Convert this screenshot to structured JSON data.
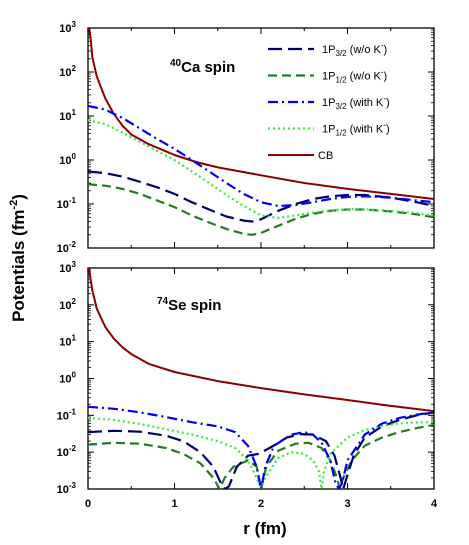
{
  "chart_data": {
    "type": "line",
    "ylabel": "Potentials (fm",
    "ylabel_sup": "-2",
    "ylabel_close": ")",
    "xlabel": "r (fm)",
    "x_range": [
      0,
      4
    ],
    "x_ticks": [
      "0",
      "1",
      "2",
      "3",
      "4"
    ],
    "y_scale": "log",
    "colors": {
      "p32_wo": "#00006e",
      "p12_wo": "#237a23",
      "p32_with": "#0000ee",
      "p12_with": "#33ee33",
      "cb": "#8b0000"
    },
    "legend": {
      "placement": "top-right",
      "entries": [
        {
          "key": "p32_wo",
          "pre": "1P",
          "sub": "3/2",
          "post": " (w/o K",
          "sup": "-",
          "end": ")",
          "style": "long-dash"
        },
        {
          "key": "p12_wo",
          "pre": "1P",
          "sub": "1/2",
          "post": " (w/o K",
          "sup": "-",
          "end": ")",
          "style": "dash"
        },
        {
          "key": "p32_with",
          "pre": "1P",
          "sub": "3/2",
          "post": " (with K",
          "sup": "-",
          "end": ")",
          "style": "dash-dot"
        },
        {
          "key": "p12_with",
          "pre": "1P",
          "sub": "1/2",
          "post": " (with K",
          "sup": "-",
          "end": ")",
          "style": "dotted"
        },
        {
          "key": "cb",
          "pre": "CB",
          "sub": "",
          "post": "",
          "sup": "",
          "end": "",
          "style": "solid"
        }
      ]
    },
    "panels": [
      {
        "label_sup": "40",
        "label": "Ca spin",
        "y_range_exp": [
          -2,
          3
        ],
        "y_ticks": [
          {
            "base": "10",
            "exp": "3"
          },
          {
            "base": "10",
            "exp": "2"
          },
          {
            "base": "10",
            "exp": "1"
          },
          {
            "base": "10",
            "exp": "0"
          },
          {
            "base": "10",
            "exp": "-1"
          },
          {
            "base": "10",
            "exp": "-2"
          }
        ],
        "series": {
          "cb": [
            [
              0.01,
              1000
            ],
            [
              0.03,
              600
            ],
            [
              0.05,
              220
            ],
            [
              0.1,
              80
            ],
            [
              0.2,
              25
            ],
            [
              0.3,
              11
            ],
            [
              0.4,
              6
            ],
            [
              0.5,
              3.8
            ],
            [
              0.7,
              2.3
            ],
            [
              1,
              1.3
            ],
            [
              1.25,
              0.9
            ],
            [
              1.5,
              0.68
            ],
            [
              2,
              0.45
            ],
            [
              2.5,
              0.3
            ],
            [
              3,
              0.22
            ],
            [
              3.5,
              0.17
            ],
            [
              4,
              0.13
            ]
          ],
          "p32_wo": [
            [
              0,
              0.55
            ],
            [
              0.2,
              0.5
            ],
            [
              0.4,
              0.42
            ],
            [
              0.6,
              0.32
            ],
            [
              0.8,
              0.24
            ],
            [
              1,
              0.17
            ],
            [
              1.2,
              0.11
            ],
            [
              1.4,
              0.075
            ],
            [
              1.6,
              0.052
            ],
            [
              1.8,
              0.042
            ],
            [
              1.9,
              0.04
            ],
            [
              2,
              0.045
            ],
            [
              2.2,
              0.07
            ],
            [
              2.4,
              0.1
            ],
            [
              2.6,
              0.13
            ],
            [
              2.8,
              0.15
            ],
            [
              3,
              0.16
            ],
            [
              3.2,
              0.16
            ],
            [
              3.5,
              0.14
            ],
            [
              3.8,
              0.11
            ],
            [
              4,
              0.09
            ]
          ],
          "p12_wo": [
            [
              0,
              0.28
            ],
            [
              0.2,
              0.26
            ],
            [
              0.4,
              0.22
            ],
            [
              0.6,
              0.17
            ],
            [
              0.8,
              0.12
            ],
            [
              1,
              0.085
            ],
            [
              1.2,
              0.055
            ],
            [
              1.4,
              0.038
            ],
            [
              1.6,
              0.027
            ],
            [
              1.8,
              0.021
            ],
            [
              1.9,
              0.02
            ],
            [
              2,
              0.022
            ],
            [
              2.2,
              0.032
            ],
            [
              2.4,
              0.046
            ],
            [
              2.6,
              0.06
            ],
            [
              2.8,
              0.07
            ],
            [
              3,
              0.075
            ],
            [
              3.2,
              0.075
            ],
            [
              3.5,
              0.068
            ],
            [
              3.8,
              0.058
            ],
            [
              4,
              0.05
            ]
          ],
          "p32_with": [
            [
              0,
              17
            ],
            [
              0.2,
              14
            ],
            [
              0.4,
              9
            ],
            [
              0.6,
              5.2
            ],
            [
              0.8,
              3
            ],
            [
              1,
              1.8
            ],
            [
              1.2,
              1
            ],
            [
              1.4,
              0.55
            ],
            [
              1.6,
              0.3
            ],
            [
              1.8,
              0.17
            ],
            [
              2,
              0.11
            ],
            [
              2.2,
              0.09
            ],
            [
              2.4,
              0.095
            ],
            [
              2.6,
              0.11
            ],
            [
              2.8,
              0.13
            ],
            [
              3,
              0.145
            ],
            [
              3.2,
              0.15
            ],
            [
              3.5,
              0.14
            ],
            [
              3.8,
              0.12
            ],
            [
              4,
              0.11
            ]
          ],
          "p12_with": [
            [
              0,
              8
            ],
            [
              0.2,
              6.5
            ],
            [
              0.4,
              4.2
            ],
            [
              0.6,
              2.6
            ],
            [
              0.8,
              1.6
            ],
            [
              1,
              1
            ],
            [
              1.2,
              0.55
            ],
            [
              1.4,
              0.3
            ],
            [
              1.6,
              0.16
            ],
            [
              1.8,
              0.09
            ],
            [
              2,
              0.055
            ],
            [
              2.2,
              0.048
            ],
            [
              2.4,
              0.055
            ],
            [
              2.6,
              0.064
            ],
            [
              2.8,
              0.072
            ],
            [
              3,
              0.076
            ],
            [
              3.2,
              0.076
            ],
            [
              3.5,
              0.07
            ],
            [
              3.8,
              0.062
            ],
            [
              4,
              0.055
            ]
          ]
        }
      },
      {
        "label_sup": "74",
        "label": "Se spin",
        "y_range_exp": [
          -3,
          3
        ],
        "y_ticks": [
          {
            "base": "10",
            "exp": "3"
          },
          {
            "base": "10",
            "exp": "2"
          },
          {
            "base": "10",
            "exp": "1"
          },
          {
            "base": "10",
            "exp": "0"
          },
          {
            "base": "10",
            "exp": "-1"
          },
          {
            "base": "10",
            "exp": "-2"
          },
          {
            "base": "10",
            "exp": "-3"
          }
        ],
        "series": {
          "cb": [
            [
              0.01,
              1000
            ],
            [
              0.03,
              500
            ],
            [
              0.05,
              250
            ],
            [
              0.1,
              80
            ],
            [
              0.2,
              25
            ],
            [
              0.3,
              12
            ],
            [
              0.4,
              7
            ],
            [
              0.5,
              4.6
            ],
            [
              0.7,
              2.5
            ],
            [
              1,
              1.5
            ],
            [
              1.5,
              0.85
            ],
            [
              2,
              0.55
            ],
            [
              2.5,
              0.37
            ],
            [
              3,
              0.26
            ],
            [
              3.5,
              0.18
            ],
            [
              4,
              0.13
            ]
          ],
          "p32_wo": [
            [
              0,
              0.035
            ],
            [
              0.3,
              0.038
            ],
            [
              0.6,
              0.036
            ],
            [
              0.9,
              0.028
            ],
            [
              1.1,
              0.02
            ],
            [
              1.3,
              0.01
            ],
            [
              1.45,
              0.004
            ],
            [
              1.55,
              0.0012
            ],
            [
              1.59,
              0.001
            ],
            [
              1.63,
              0.0012
            ],
            [
              1.72,
              0.004
            ],
            [
              1.85,
              0.008
            ],
            [
              1.97,
              0.009
            ],
            [
              2.1,
              0.013
            ],
            [
              2.3,
              0.025
            ],
            [
              2.45,
              0.031
            ],
            [
              2.6,
              0.03
            ],
            [
              2.75,
              0.02
            ],
            [
              2.85,
              0.008
            ],
            [
              2.92,
              0.002
            ],
            [
              2.95,
              0.001
            ],
            [
              2.99,
              0.002
            ],
            [
              3.07,
              0.008
            ],
            [
              3.2,
              0.025
            ],
            [
              3.4,
              0.05
            ],
            [
              3.6,
              0.075
            ],
            [
              3.8,
              0.1
            ],
            [
              4,
              0.12
            ]
          ],
          "p12_wo": [
            [
              0,
              0.016
            ],
            [
              0.3,
              0.018
            ],
            [
              0.6,
              0.017
            ],
            [
              0.9,
              0.013
            ],
            [
              1.1,
              0.009
            ],
            [
              1.3,
              0.005
            ],
            [
              1.45,
              0.002
            ],
            [
              1.52,
              0.001
            ],
            [
              1.58,
              0.002
            ],
            [
              1.68,
              0.004
            ],
            [
              1.85,
              0.006
            ],
            [
              1.95,
              0.004
            ],
            [
              2,
              0.001
            ],
            [
              2.06,
              0.004
            ],
            [
              2.2,
              0.011
            ],
            [
              2.4,
              0.017
            ],
            [
              2.55,
              0.018
            ],
            [
              2.7,
              0.013
            ],
            [
              2.8,
              0.006
            ],
            [
              2.88,
              0.002
            ],
            [
              2.91,
              0.001
            ],
            [
              2.95,
              0.002
            ],
            [
              3.05,
              0.006
            ],
            [
              3.2,
              0.015
            ],
            [
              3.4,
              0.025
            ],
            [
              3.6,
              0.035
            ],
            [
              3.8,
              0.045
            ],
            [
              4,
              0.055
            ]
          ],
          "p32_with": [
            [
              0,
              0.17
            ],
            [
              0.3,
              0.15
            ],
            [
              0.6,
              0.12
            ],
            [
              0.9,
              0.09
            ],
            [
              1.2,
              0.065
            ],
            [
              1.5,
              0.05
            ],
            [
              1.7,
              0.035
            ],
            [
              1.85,
              0.015
            ],
            [
              1.95,
              0.004
            ],
            [
              2,
              0.001
            ],
            [
              2.05,
              0.004
            ],
            [
              2.15,
              0.015
            ],
            [
              2.35,
              0.03
            ],
            [
              2.5,
              0.035
            ],
            [
              2.6,
              0.03
            ],
            [
              2.7,
              0.018
            ],
            [
              2.8,
              0.006
            ],
            [
              2.86,
              0.0015
            ],
            [
              2.9,
              0.001
            ],
            [
              2.94,
              0.0015
            ],
            [
              3,
              0.006
            ],
            [
              3.2,
              0.03
            ],
            [
              3.4,
              0.06
            ],
            [
              3.6,
              0.085
            ],
            [
              3.8,
              0.105
            ],
            [
              4,
              0.12
            ]
          ],
          "p12_with": [
            [
              0,
              0.085
            ],
            [
              0.3,
              0.075
            ],
            [
              0.6,
              0.058
            ],
            [
              0.9,
              0.042
            ],
            [
              1.2,
              0.03
            ],
            [
              1.5,
              0.02
            ],
            [
              1.7,
              0.013
            ],
            [
              1.85,
              0.006
            ],
            [
              1.95,
              0.002
            ],
            [
              2,
              0.001
            ],
            [
              2.05,
              0.002
            ],
            [
              2.2,
              0.007
            ],
            [
              2.35,
              0.01
            ],
            [
              2.5,
              0.009
            ],
            [
              2.6,
              0.006
            ],
            [
              2.67,
              0.003
            ],
            [
              2.7,
              0.001
            ],
            [
              2.73,
              0.003
            ],
            [
              2.8,
              0.009
            ],
            [
              3,
              0.025
            ],
            [
              3.2,
              0.04
            ],
            [
              3.4,
              0.052
            ],
            [
              3.6,
              0.06
            ],
            [
              3.8,
              0.064
            ],
            [
              4,
              0.066
            ]
          ]
        }
      }
    ]
  }
}
